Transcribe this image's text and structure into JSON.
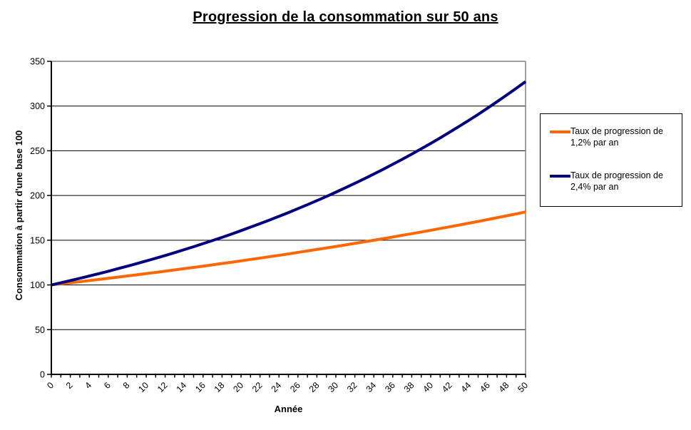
{
  "colors": {
    "grid": "#000000",
    "axis": "#000000",
    "plot_border": "#808080",
    "text": "#000000",
    "legend_border": "#000000",
    "background": "#FFFFFF"
  },
  "chart_data": {
    "type": "line",
    "title": "Progression de la consommation sur 50 ans",
    "xlabel": "Année",
    "ylabel": "Consommation à partir d'une base 100",
    "xlim": [
      0,
      50
    ],
    "ylim": [
      0,
      350
    ],
    "ytick_step": 50,
    "xtick_step": 1,
    "xtick_label_step": 2,
    "grid": "horizontal",
    "legend_position": "right",
    "x": [
      0,
      1,
      2,
      3,
      4,
      5,
      6,
      7,
      8,
      9,
      10,
      11,
      12,
      13,
      14,
      15,
      16,
      17,
      18,
      19,
      20,
      21,
      22,
      23,
      24,
      25,
      26,
      27,
      28,
      29,
      30,
      31,
      32,
      33,
      34,
      35,
      36,
      37,
      38,
      39,
      40,
      41,
      42,
      43,
      44,
      45,
      46,
      47,
      48,
      49,
      50
    ],
    "series": [
      {
        "name": "Taux de progression de 1,2% par an",
        "color": "#FF6600",
        "values": [
          100,
          101.2,
          102.4,
          103.6,
          104.9,
          106.1,
          107.4,
          108.7,
          110.0,
          111.3,
          112.7,
          114.0,
          115.4,
          116.8,
          118.2,
          119.6,
          121.0,
          122.5,
          124.0,
          125.4,
          126.9,
          128.5,
          130.0,
          131.6,
          133.1,
          134.7,
          136.4,
          138.0,
          139.7,
          141.3,
          143.0,
          144.7,
          146.5,
          148.2,
          150.0,
          151.8,
          153.6,
          155.5,
          157.3,
          159.2,
          161.1,
          163.1,
          165.0,
          167.0,
          169.0,
          171.0,
          173.1,
          175.2,
          177.3,
          179.4,
          181.6
        ]
      },
      {
        "name": "Taux de progression de 2,4% par an",
        "color": "#000080",
        "values": [
          100,
          102.4,
          104.9,
          107.4,
          110.0,
          112.6,
          115.3,
          118.1,
          120.9,
          123.8,
          126.8,
          129.8,
          132.9,
          136.1,
          139.4,
          142.7,
          146.2,
          149.7,
          153.2,
          156.9,
          160.7,
          164.6,
          168.5,
          172.5,
          176.7,
          180.9,
          185.3,
          189.7,
          194.3,
          198.9,
          203.7,
          208.6,
          213.6,
          218.7,
          224.0,
          229.3,
          234.9,
          240.5,
          246.3,
          252.2,
          258.2,
          264.4,
          270.8,
          277.3,
          283.9,
          290.7,
          297.7,
          304.9,
          312.2,
          319.7,
          327.3
        ]
      }
    ]
  }
}
